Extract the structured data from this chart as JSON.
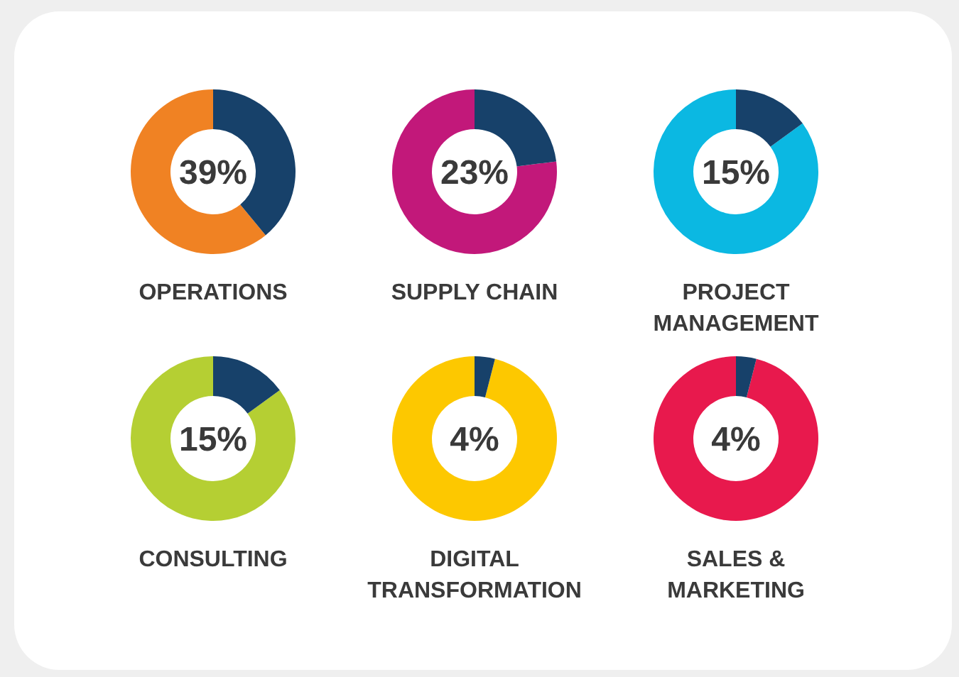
{
  "chart_data": [
    {
      "type": "donut",
      "title": "OPERATIONS",
      "categories": [
        null,
        null
      ],
      "values": [
        39,
        61
      ],
      "colors": [
        "#17416a",
        "#f08223"
      ],
      "annotations": [
        "39%"
      ]
    },
    {
      "type": "donut",
      "title": "SUPPLY CHAIN",
      "categories": [
        null,
        null
      ],
      "values": [
        23,
        77
      ],
      "colors": [
        "#17416a",
        "#c2187a"
      ],
      "annotations": [
        "23%"
      ]
    },
    {
      "type": "donut",
      "title": "PROJECT MANAGEMENT",
      "categories": [
        null,
        null
      ],
      "values": [
        15,
        85
      ],
      "colors": [
        "#17416a",
        "#0bb8e2"
      ],
      "annotations": [
        "15%"
      ]
    },
    {
      "type": "donut",
      "title": "CONSULTING",
      "categories": [
        null,
        null
      ],
      "values": [
        15,
        85
      ],
      "colors": [
        "#17416a",
        "#b5cf33"
      ],
      "annotations": [
        "15%"
      ]
    },
    {
      "type": "donut",
      "title": "DIGITAL TRANSFORMATION",
      "categories": [
        null,
        null
      ],
      "values": [
        4,
        96
      ],
      "colors": [
        "#17416a",
        "#fdc800"
      ],
      "annotations": [
        "4%"
      ]
    },
    {
      "type": "donut",
      "title": "SALES & MARKETING",
      "categories": [
        null,
        null
      ],
      "values": [
        4,
        96
      ],
      "colors": [
        "#17416a",
        "#e8194d"
      ],
      "annotations": [
        "4%"
      ]
    }
  ]
}
